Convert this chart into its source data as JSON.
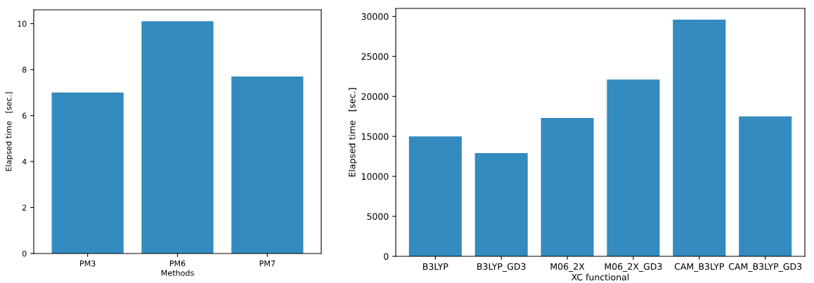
{
  "chart_data": [
    {
      "type": "bar",
      "categories": [
        "PM3",
        "PM6",
        "PM7"
      ],
      "values": [
        7.0,
        10.1,
        7.7
      ],
      "color": "#338bbf",
      "xlabel": "Methods",
      "ylabel": "Elapsed time   [sec.]",
      "ylim": [
        0,
        10.6
      ],
      "yticks": [
        0,
        2,
        4,
        6,
        8,
        10
      ],
      "grid": false
    },
    {
      "type": "bar",
      "categories": [
        "B3LYP",
        "B3LYP_GD3",
        "M06_2X",
        "M06_2X_GD3",
        "CAM_B3LYP",
        "CAM_B3LYP_GD3"
      ],
      "values": [
        15000,
        12900,
        17300,
        22100,
        29600,
        17500
      ],
      "color": "#338bbf",
      "xlabel": "XC functional",
      "ylabel": "Elapsed time   [sec.]",
      "ylim": [
        0,
        31000
      ],
      "yticks": [
        0,
        5000,
        10000,
        15000,
        20000,
        25000,
        30000
      ],
      "grid": false
    }
  ]
}
